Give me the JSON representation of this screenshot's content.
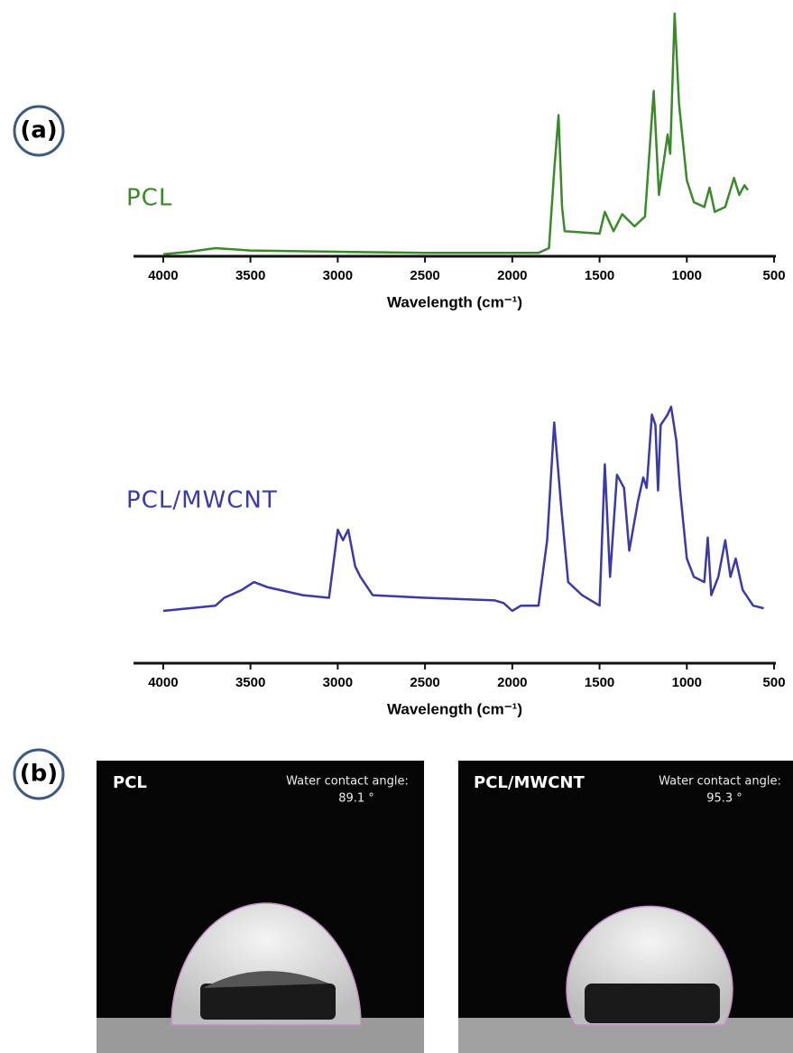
{
  "panels": {
    "a": "(a)",
    "b": "(b)"
  },
  "chart_data": [
    {
      "type": "line",
      "xlabel": "Wavelength (cm⁻¹)",
      "xlim": [
        4170,
        490
      ],
      "xticks": [
        4000,
        3500,
        3000,
        2500,
        2000,
        1500,
        1000,
        500
      ],
      "ylim": [
        0,
        100
      ],
      "x": [
        4000,
        3850,
        3700,
        3500,
        3000,
        2500,
        2000,
        1850,
        1790,
        1760,
        1735,
        1715,
        1700,
        1500,
        1470,
        1420,
        1370,
        1300,
        1240,
        1190,
        1160,
        1110,
        1095,
        1070,
        1045,
        1000,
        960,
        900,
        870,
        840,
        780,
        730,
        700,
        670,
        650
      ],
      "series": [
        {
          "name": "PCL",
          "color": "#3a8a2a",
          "values": [
            0.5,
            1.5,
            3,
            2,
            1.5,
            1,
            1,
            1,
            3,
            35,
            58,
            20,
            10,
            9,
            18,
            10,
            17,
            12,
            16,
            68,
            25,
            50,
            42,
            100,
            63,
            31,
            22,
            20,
            28,
            18,
            20,
            32,
            25,
            29,
            27
          ]
        }
      ]
    },
    {
      "type": "line",
      "xlabel": "Wavelength (cm⁻¹)",
      "xlim": [
        4170,
        490
      ],
      "xticks": [
        4000,
        3500,
        3000,
        2500,
        2000,
        1500,
        1000,
        500
      ],
      "ylim": [
        0,
        100
      ],
      "x": [
        4000,
        3700,
        3650,
        3550,
        3480,
        3400,
        3200,
        3050,
        3000,
        2970,
        2940,
        2900,
        2870,
        2800,
        2500,
        2100,
        2050,
        2000,
        1950,
        1850,
        1800,
        1760,
        1720,
        1680,
        1600,
        1500,
        1470,
        1440,
        1400,
        1360,
        1330,
        1280,
        1250,
        1230,
        1200,
        1180,
        1165,
        1150,
        1110,
        1090,
        1060,
        1040,
        1000,
        960,
        900,
        880,
        860,
        820,
        780,
        750,
        720,
        680,
        620,
        560
      ],
      "series": [
        {
          "name": "PCL/MWCNT",
          "color": "#3a3aa8",
          "values": [
            20,
            22,
            25,
            28,
            31,
            29,
            26,
            25,
            51,
            47,
            51,
            37,
            33,
            26,
            25,
            24,
            23,
            20,
            22,
            22,
            47,
            92,
            60,
            31,
            26,
            22,
            76,
            33,
            72,
            67,
            43,
            62,
            71,
            67,
            95,
            91,
            66,
            91,
            95,
            98,
            85,
            67,
            40,
            33,
            31,
            48,
            26,
            33,
            47,
            33,
            40,
            28,
            22,
            21
          ]
        }
      ]
    }
  ],
  "photos": [
    {
      "label": "PCL",
      "caption": "Water contact angle:",
      "angle": "89.1 °"
    },
    {
      "label": "PCL/MWCNT",
      "caption": "Water contact angle:",
      "angle": "95.3 °"
    }
  ]
}
